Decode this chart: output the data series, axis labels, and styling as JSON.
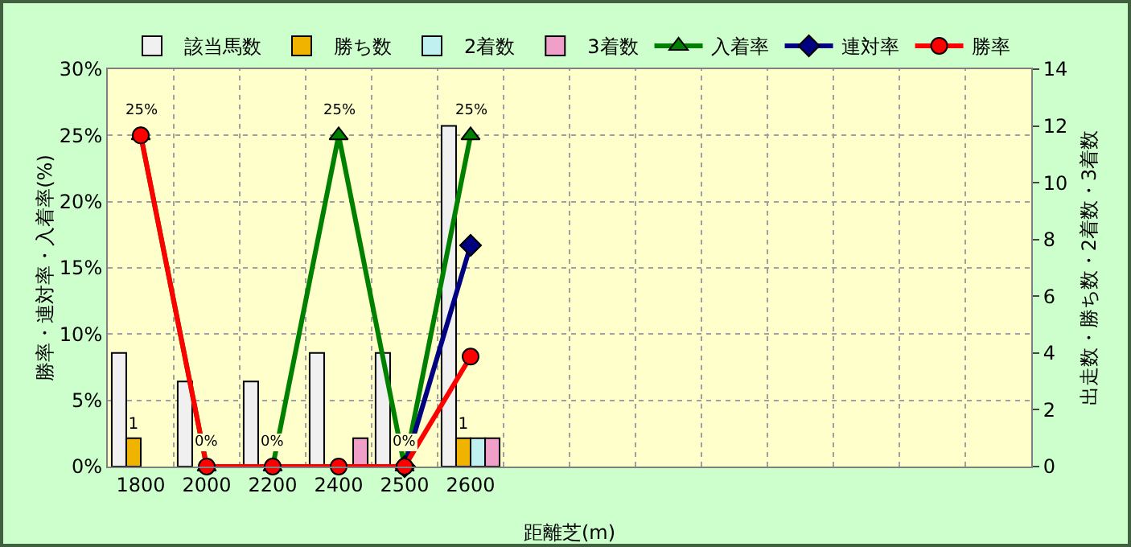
{
  "chart_data": {
    "type": "bar",
    "categories": [
      "1800",
      "2000",
      "2200",
      "2400",
      "2500",
      "2600",
      null,
      null,
      null,
      null,
      null,
      null,
      null,
      null
    ],
    "xlabel": "距離芝(m)",
    "ylabel": "勝率・連対率・入着率(%)",
    "y2label": "出走数・勝ち数・2着数・3着数",
    "ylim": [
      0,
      30
    ],
    "yticks": [
      {
        "value": 0,
        "label": "0%"
      },
      {
        "value": 5,
        "label": "5%"
      },
      {
        "value": 10,
        "label": "10%"
      },
      {
        "value": 15,
        "label": "15%"
      },
      {
        "value": 20,
        "label": "20%"
      },
      {
        "value": 25,
        "label": "25%"
      },
      {
        "value": 30,
        "label": "30%"
      }
    ],
    "y2lim": [
      0,
      14
    ],
    "y2ticks": [
      0,
      2,
      4,
      6,
      8,
      10,
      12,
      14
    ],
    "grid": true,
    "legend": "top",
    "series": [
      {
        "name": "該当馬数",
        "axis": "y2",
        "color": "#f0f0f0",
        "values": [
          4,
          3,
          3,
          4,
          4,
          12,
          null,
          null,
          null,
          null,
          null,
          null,
          null,
          null
        ]
      },
      {
        "name": "勝ち数",
        "axis": "y2",
        "color": "#f0b400",
        "values": [
          1,
          null,
          null,
          null,
          null,
          1,
          null,
          null,
          null,
          null,
          null,
          null,
          null,
          null
        ],
        "value_labels": [
          "1",
          null,
          null,
          null,
          null,
          "1",
          null,
          null,
          null,
          null,
          null,
          null,
          null,
          null
        ]
      },
      {
        "name": "2着数",
        "axis": "y2",
        "color": "#c0f0f0",
        "values": [
          null,
          null,
          null,
          null,
          null,
          1,
          null,
          null,
          null,
          null,
          null,
          null,
          null,
          null
        ]
      },
      {
        "name": "3着数",
        "axis": "y2",
        "color": "#f0a0c8",
        "values": [
          null,
          null,
          null,
          1,
          null,
          1,
          null,
          null,
          null,
          null,
          null,
          null,
          null,
          null
        ]
      },
      {
        "name": "入着率",
        "type": "line",
        "marker": "triangle",
        "color": "#008000",
        "values": [
          25,
          0,
          0,
          25,
          0,
          25,
          null,
          null,
          null,
          null,
          null,
          null,
          null,
          null
        ],
        "value_labels": [
          "25%",
          "0%",
          "0%",
          "25%",
          "0%",
          "25%",
          null,
          null,
          null,
          null,
          null,
          null,
          null,
          null
        ]
      },
      {
        "name": "連対率",
        "type": "line",
        "marker": "diamond",
        "color": "#000080",
        "values": [
          null,
          null,
          null,
          null,
          0,
          16.7,
          null,
          null,
          null,
          null,
          null,
          null,
          null,
          null
        ]
      },
      {
        "name": "勝率",
        "type": "line",
        "marker": "circle",
        "color": "#ff0000",
        "values": [
          25,
          0,
          0,
          0,
          0,
          8.3,
          null,
          null,
          null,
          null,
          null,
          null,
          null,
          null
        ]
      }
    ]
  }
}
